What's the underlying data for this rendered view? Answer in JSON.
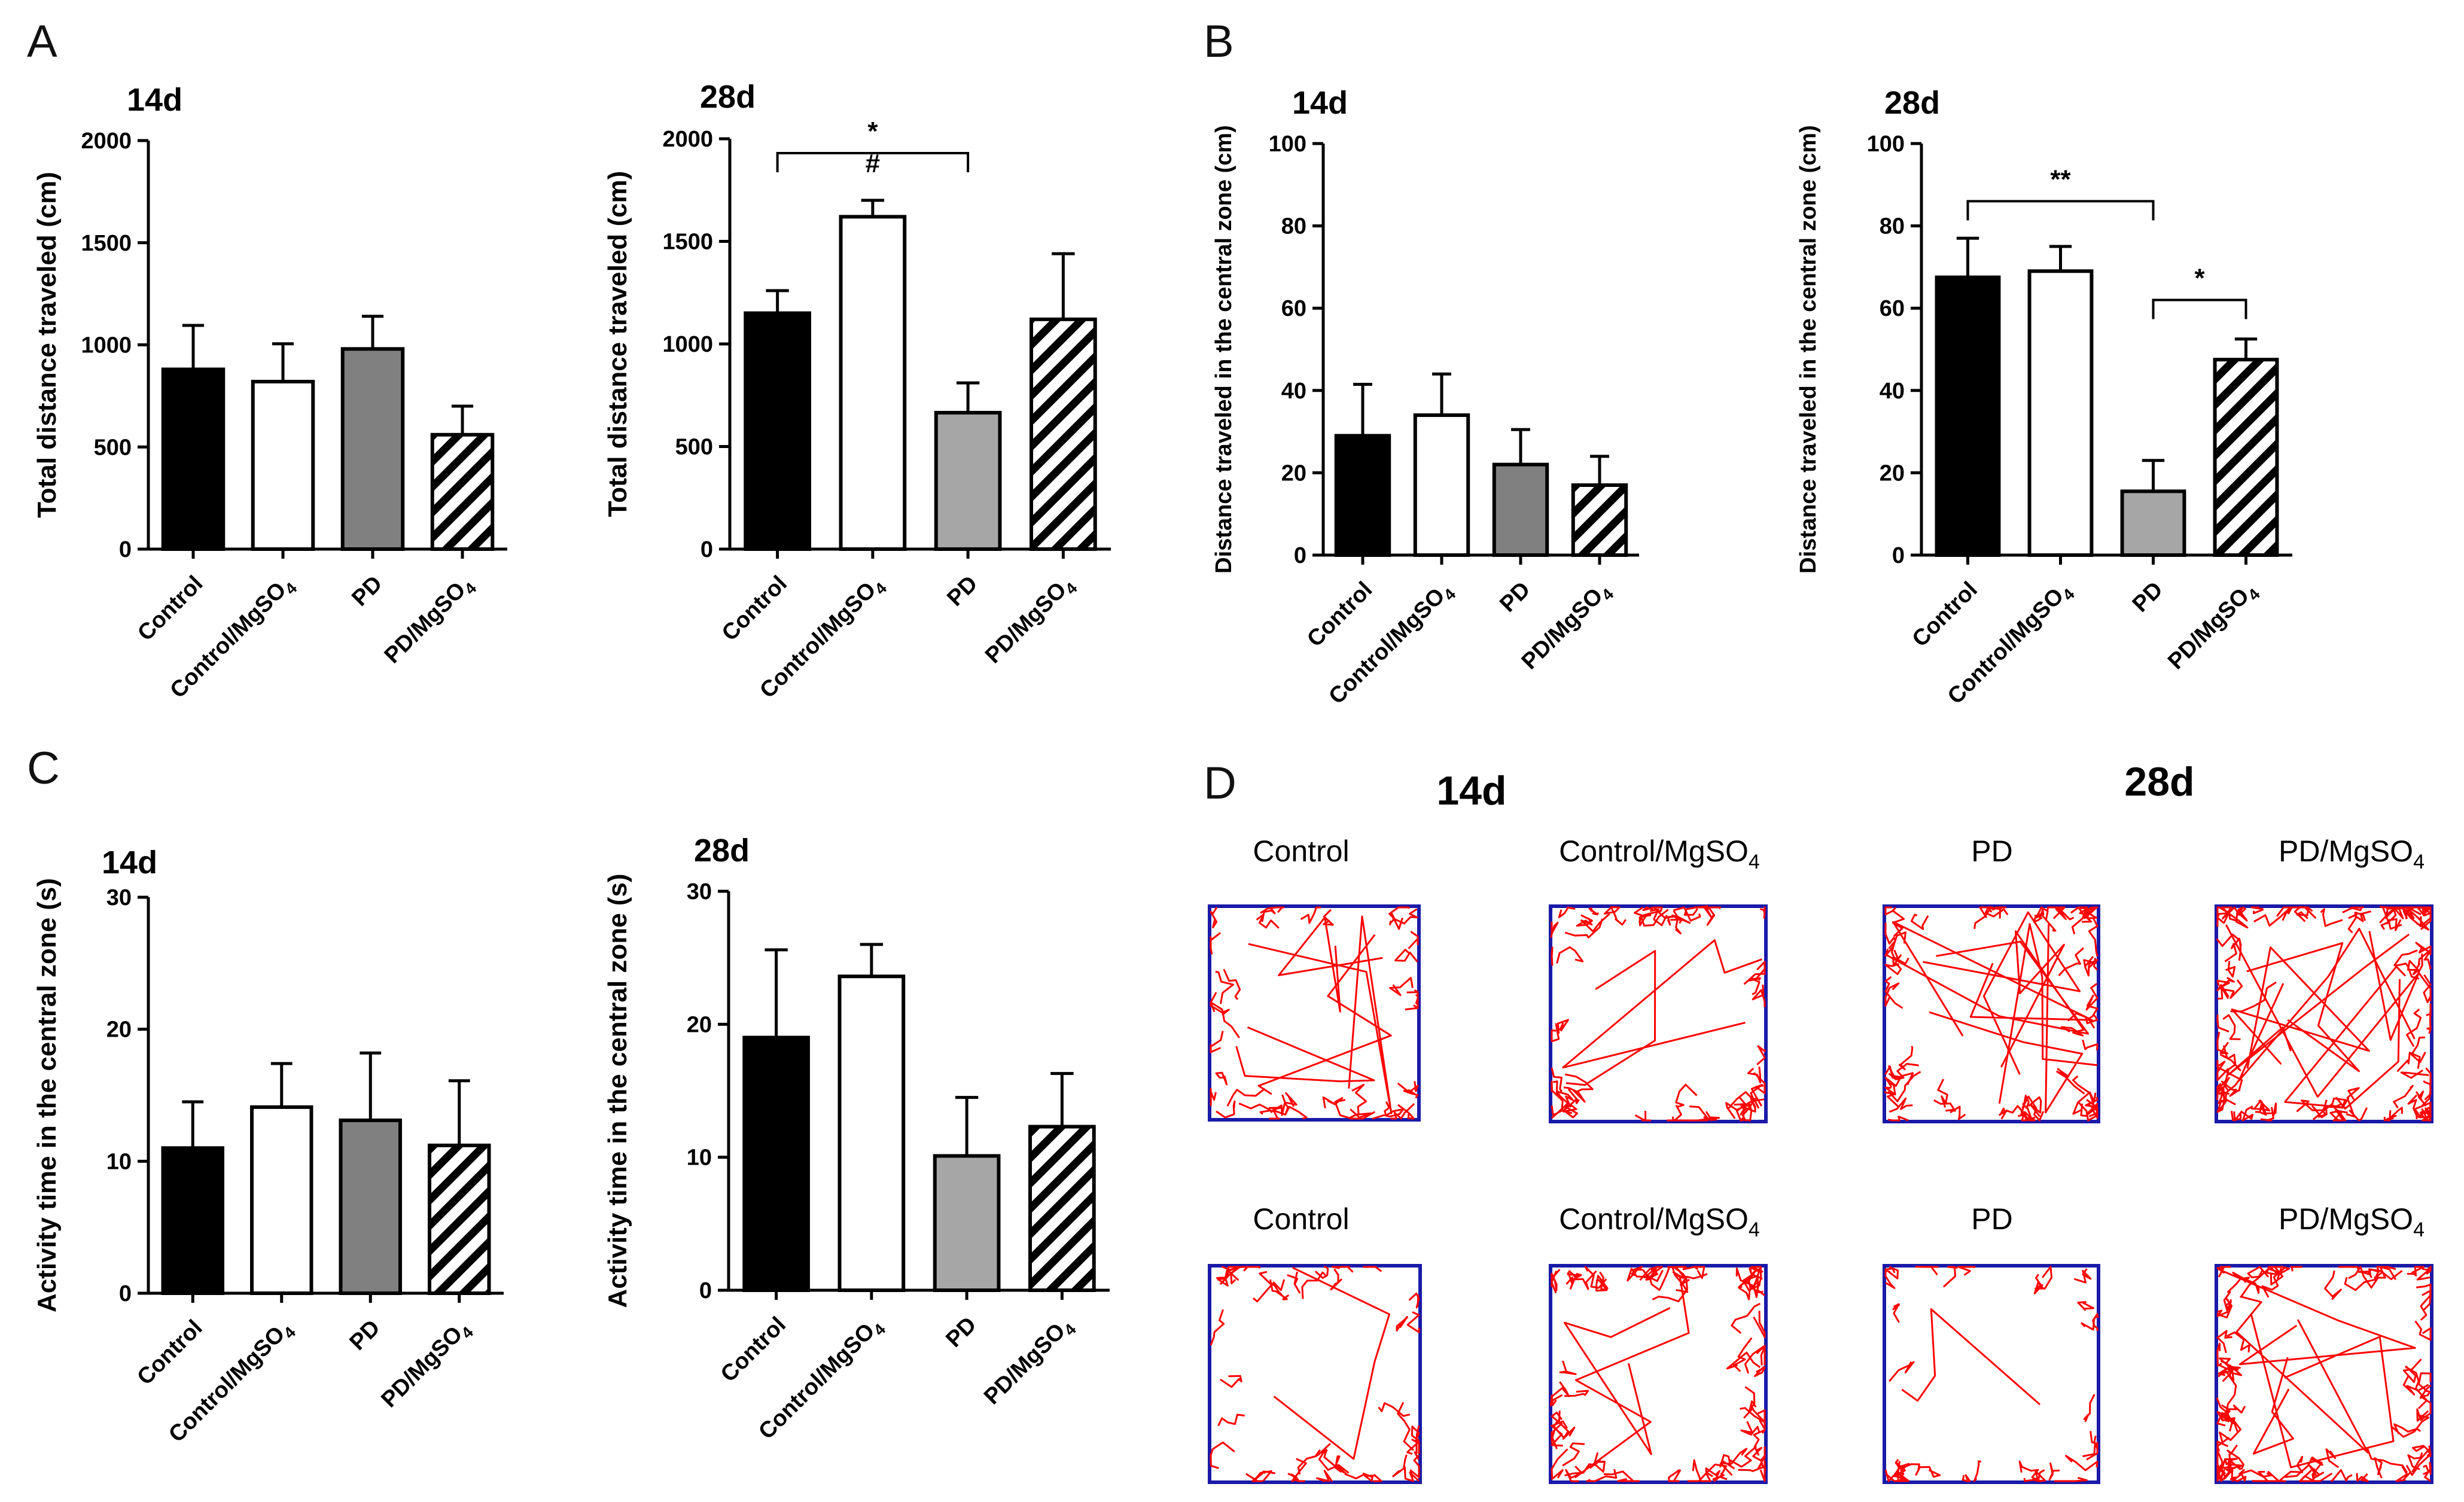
{
  "panels": {
    "A": {
      "letter": "A"
    },
    "B": {
      "letter": "B"
    },
    "C": {
      "letter": "C"
    },
    "D": {
      "letter": "D"
    }
  },
  "colors": {
    "control": "#000000",
    "control_mgso4": "#ffffff",
    "pd_14d": "#808080",
    "pd_28d": "#a6a6a6",
    "hatch": "#000000",
    "track": "#ff0000",
    "arena": "#1a1aa8"
  },
  "chart_data": [
    {
      "id": "A-14d",
      "panel": "A",
      "title": "14d",
      "type": "bar",
      "ylabel": "Total distance traveled (cm)",
      "ylim": [
        0,
        2000
      ],
      "yticks": [
        0,
        500,
        1000,
        1500,
        2000
      ],
      "categories": [
        "Control",
        "Control/MgSO4",
        "PD",
        "PD/MgSO4"
      ],
      "category_main": [
        "Control",
        "Control/MgSO",
        "PD",
        "PD/MgSO"
      ],
      "category_sub": [
        "",
        "4",
        "",
        "4"
      ],
      "values": [
        880,
        820,
        980,
        560
      ],
      "errors": [
        215,
        185,
        160,
        140
      ],
      "annotations": []
    },
    {
      "id": "A-28d",
      "panel": "A",
      "title": "28d",
      "type": "bar",
      "ylabel": "Total distance traveled (cm)",
      "ylim": [
        0,
        2000
      ],
      "yticks": [
        0,
        500,
        1000,
        1500,
        2000
      ],
      "categories": [
        "Control",
        "Control/MgSO4",
        "PD",
        "PD/MgSO4"
      ],
      "category_main": [
        "Control",
        "Control/MgSO",
        "PD",
        "PD/MgSO"
      ],
      "category_sub": [
        "",
        "4",
        "",
        "4"
      ],
      "values": [
        1150,
        1620,
        665,
        1120
      ],
      "errors": [
        110,
        80,
        145,
        320
      ],
      "annotations": [
        {
          "type": "bracket",
          "from": 0,
          "to": 2,
          "level": 1930,
          "label": "*"
        },
        {
          "type": "marker",
          "at": 1,
          "level": 1790,
          "label": "#"
        }
      ]
    },
    {
      "id": "B-14d",
      "panel": "B",
      "title": "14d",
      "type": "bar",
      "ylabel": "Distance traveled in the central zone (cm)",
      "ylim": [
        0,
        100
      ],
      "yticks": [
        0,
        20,
        40,
        60,
        80,
        100
      ],
      "categories": [
        "Control",
        "Control/MgSO4",
        "PD",
        "PD/MgSO4"
      ],
      "category_main": [
        "Control",
        "Control/MgSO",
        "PD",
        "PD/MgSO"
      ],
      "category_sub": [
        "",
        "4",
        "",
        "4"
      ],
      "values": [
        29,
        34,
        22,
        17
      ],
      "errors": [
        12.5,
        10,
        8.5,
        7
      ],
      "annotations": []
    },
    {
      "id": "B-28d",
      "panel": "B",
      "title": "28d",
      "type": "bar",
      "ylabel": "Distance traveled in the central zone (cm)",
      "ylim": [
        0,
        100
      ],
      "yticks": [
        0,
        20,
        40,
        60,
        80,
        100
      ],
      "categories": [
        "Control",
        "Control/MgSO4",
        "PD",
        "PD/MgSO4"
      ],
      "category_main": [
        "Control",
        "Control/MgSO",
        "PD",
        "PD/MgSO"
      ],
      "category_sub": [
        "",
        "4",
        "",
        "4"
      ],
      "values": [
        67.5,
        69,
        15.5,
        47.5
      ],
      "errors": [
        9.5,
        6,
        7.5,
        5
      ],
      "annotations": [
        {
          "type": "bracket",
          "from": 0,
          "to": 2,
          "level": 86,
          "label": "**"
        },
        {
          "type": "bracket",
          "from": 2,
          "to": 3,
          "level": 62,
          "label": "*"
        }
      ]
    },
    {
      "id": "C-14d",
      "panel": "C",
      "title": "14d",
      "type": "bar",
      "ylabel": "Activity time in the central zone (s)",
      "ylim": [
        0,
        30
      ],
      "yticks": [
        0,
        10,
        20,
        30
      ],
      "categories": [
        "Control",
        "Control/MgSO4",
        "PD",
        "PD/MgSO4"
      ],
      "category_main": [
        "Control",
        "Control/MgSO",
        "PD",
        "PD/MgSO"
      ],
      "category_sub": [
        "",
        "4",
        "",
        "4"
      ],
      "values": [
        11,
        14.1,
        13.1,
        11.2
      ],
      "errors": [
        3.5,
        3.3,
        5.1,
        4.9
      ],
      "annotations": []
    },
    {
      "id": "C-28d",
      "panel": "C",
      "title": "28d",
      "type": "bar",
      "ylabel": "Activity time in the central zone (s)",
      "ylim": [
        0,
        30
      ],
      "yticks": [
        0,
        10,
        20,
        30
      ],
      "categories": [
        "Control",
        "Control/MgSO4",
        "PD",
        "PD/MgSO4"
      ],
      "category_main": [
        "Control",
        "Control/MgSO",
        "PD",
        "PD/MgSO"
      ],
      "category_sub": [
        "",
        "4",
        "",
        "4"
      ],
      "values": [
        19,
        23.6,
        10.1,
        12.3
      ],
      "errors": [
        6.6,
        2.4,
        4.4,
        4
      ],
      "annotations": []
    }
  ],
  "tracking": {
    "time_labels": [
      "14d",
      "28d"
    ],
    "groups": [
      {
        "main": "Control",
        "sub": ""
      },
      {
        "main": "Control/MgSO",
        "sub": "4"
      },
      {
        "main": "PD",
        "sub": ""
      },
      {
        "main": "PD/MgSO",
        "sub": "4"
      }
    ]
  }
}
